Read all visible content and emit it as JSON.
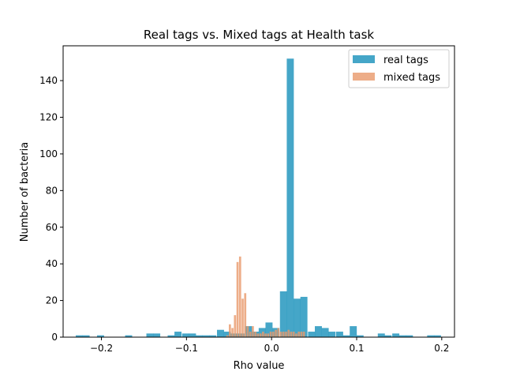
{
  "chart_data": {
    "type": "bar",
    "title": "Real tags vs. Mixed tags at Health task",
    "xlabel": "Rho value",
    "ylabel": "Number of bacteria",
    "xlim": [
      -0.245,
      0.215
    ],
    "ylim": [
      0,
      159
    ],
    "xticks": [
      -0.2,
      -0.1,
      0.0,
      0.1,
      0.2
    ],
    "xtick_labels": [
      "−0.2",
      "−0.1",
      "0.0",
      "0.1",
      "0.2"
    ],
    "yticks": [
      0,
      20,
      40,
      60,
      80,
      100,
      120,
      140
    ],
    "ytick_labels": [
      "0",
      "20",
      "40",
      "60",
      "80",
      "100",
      "120",
      "140"
    ],
    "grid": false,
    "legend_position": "top-right",
    "series": [
      {
        "name": "real tags",
        "color": "#2596be",
        "bin_width": 0.0083,
        "x": [
          -0.226,
          -0.218,
          -0.201,
          -0.168,
          -0.143,
          -0.135,
          -0.118,
          -0.11,
          -0.101,
          -0.093,
          -0.085,
          -0.077,
          -0.069,
          -0.06,
          -0.052,
          -0.044,
          -0.036,
          -0.027,
          -0.019,
          -0.011,
          -0.003,
          0.005,
          0.014,
          0.022,
          0.03,
          0.038,
          0.047,
          0.055,
          0.063,
          0.071,
          0.08,
          0.088,
          0.096,
          0.104,
          0.129,
          0.137,
          0.146,
          0.154,
          0.162,
          0.187,
          0.195
        ],
        "values": [
          1,
          1,
          1,
          1,
          2,
          2,
          1,
          3,
          2,
          2,
          1,
          1,
          1,
          4,
          3,
          2,
          2,
          6,
          3,
          5,
          8,
          5,
          25,
          152,
          21,
          22,
          3,
          6,
          5,
          3,
          3,
          1,
          6,
          1,
          2,
          1,
          2,
          1,
          1,
          1,
          1
        ]
      },
      {
        "name": "mixed tags",
        "color": "#e8996a",
        "bin_width": 0.0025,
        "x": [
          -0.052,
          -0.049,
          -0.046,
          -0.043,
          -0.04,
          -0.037,
          -0.034,
          -0.031,
          -0.028,
          -0.025,
          -0.022,
          -0.019,
          -0.016,
          -0.013,
          -0.01,
          -0.007,
          -0.004,
          -0.001,
          0.002,
          0.005,
          0.008,
          0.011,
          0.014,
          0.017,
          0.02,
          0.023,
          0.026,
          0.029,
          0.032,
          0.035,
          0.038
        ],
        "values": [
          1,
          7,
          5,
          12,
          41,
          44,
          21,
          24,
          6,
          3,
          6,
          3,
          2,
          2,
          3,
          2,
          2,
          3,
          3,
          4,
          5,
          3,
          3,
          3,
          4,
          3,
          3,
          2,
          3,
          3,
          3
        ]
      }
    ]
  }
}
